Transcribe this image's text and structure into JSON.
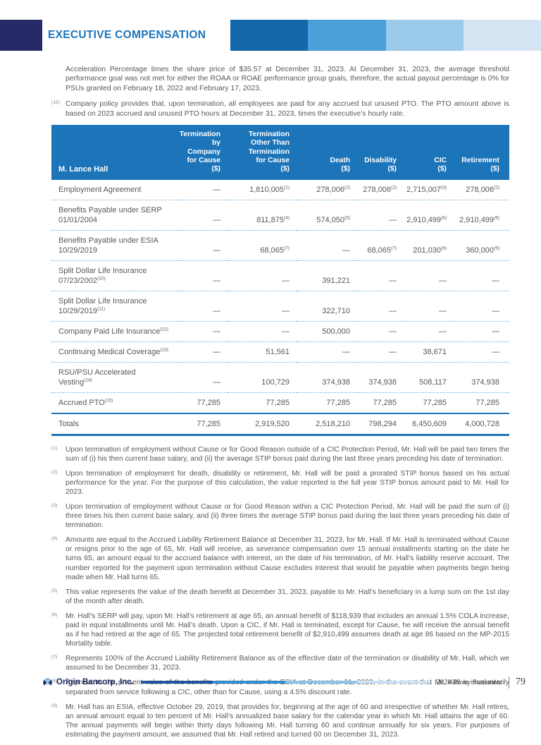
{
  "header": {
    "title": "EXECUTIVE COMPENSATION",
    "navy_block_color": "#262A66",
    "title_color": "#1B75BC",
    "band_colors": [
      "#1368AC",
      "#4A9FD8",
      "#9CCAEB",
      "#D5E5F4"
    ]
  },
  "top_notes": [
    {
      "marker": "",
      "text": "Acceleration Percentage times the share price of $35.57 at December 31, 2023. At December 31, 2023, the average threshold performance goal was not met for either the ROAA or ROAE performance group goals, therefore, the actual payout percentage is 0% for PSUs granted on February 18, 2022 and February 17, 2023."
    },
    {
      "marker": "(15)",
      "text": "Company policy provides that, upon termination, all employees are paid for any accrued but unused PTO. The PTO amount above is based on 2023 accrued and unused PTO hours at December 31, 2023, times the executive’s hourly rate."
    }
  ],
  "table": {
    "header_bg": "#1C74B9",
    "name_header": "M. Lance Hall",
    "columns": [
      "Termination\nby Company\nfor Cause\n($)",
      "Termination\nOther Than\nTermination\nfor Cause\n($)",
      "Death\n($)",
      "Disability\n($)",
      "CIC\n($)",
      "Retirement\n($)"
    ],
    "rows": [
      {
        "label": {
          "l1": "Employment Agreement"
        },
        "cells": [
          {
            "v": "—"
          },
          {
            "v": "1,810,005",
            "s": "(1)"
          },
          {
            "v": "278,006",
            "s": "(2)"
          },
          {
            "v": "278,006",
            "s": "(2)"
          },
          {
            "v": "2,715,007",
            "s": "(3)"
          },
          {
            "v": "278,006",
            "s": "(2)"
          }
        ]
      },
      {
        "label": {
          "l1": "Benefits Payable under SERP",
          "l2": "01/01/2004"
        },
        "cells": [
          {
            "v": "—"
          },
          {
            "v": "811,875",
            "s": "(4)"
          },
          {
            "v": "574,050",
            "s": "(5)"
          },
          {
            "v": "—"
          },
          {
            "v": "2,910,499",
            "s": "(6)"
          },
          {
            "v": "2,910,499",
            "s": "(6)"
          }
        ]
      },
      {
        "label": {
          "l1": "Benefits Payable under ESIA",
          "l2": "10/29/2019"
        },
        "cells": [
          {
            "v": "—"
          },
          {
            "v": "68,065",
            "s": "(7)"
          },
          {
            "v": "—"
          },
          {
            "v": "68,065",
            "s": "(7)"
          },
          {
            "v": "201,030",
            "s": "(8)"
          },
          {
            "v": "360,000",
            "s": "(9)"
          }
        ]
      },
      {
        "label": {
          "l1": "Split Dollar Life Insurance",
          "l2": "07/23/2002",
          "sup": "(10)"
        },
        "cells": [
          {
            "v": "—"
          },
          {
            "v": "—"
          },
          {
            "v": "391,221"
          },
          {
            "v": "—"
          },
          {
            "v": "—"
          },
          {
            "v": "—"
          }
        ]
      },
      {
        "label": {
          "l1": "Split Dollar Life Insurance",
          "l2": "10/29/2019",
          "sup": "(11)"
        },
        "cells": [
          {
            "v": "—"
          },
          {
            "v": "—"
          },
          {
            "v": "322,710"
          },
          {
            "v": "—"
          },
          {
            "v": "—"
          },
          {
            "v": "—"
          }
        ]
      },
      {
        "label": {
          "l1": "Company Paid Life Insurance",
          "sup": "(12)"
        },
        "cells": [
          {
            "v": "—"
          },
          {
            "v": "—"
          },
          {
            "v": "500,000"
          },
          {
            "v": "—"
          },
          {
            "v": "—"
          },
          {
            "v": "—"
          }
        ]
      },
      {
        "label": {
          "l1": "Continuing Medical Coverage",
          "sup": "(13)"
        },
        "cells": [
          {
            "v": "—"
          },
          {
            "v": "51,561"
          },
          {
            "v": "—"
          },
          {
            "v": "—"
          },
          {
            "v": "38,671"
          },
          {
            "v": "—"
          }
        ]
      },
      {
        "label": {
          "l1": "RSU/PSU Accelerated Vesting",
          "sup": "(14)"
        },
        "cells": [
          {
            "v": "—"
          },
          {
            "v": "100,729"
          },
          {
            "v": "374,938"
          },
          {
            "v": "374,938"
          },
          {
            "v": "508,117"
          },
          {
            "v": "374,938"
          }
        ]
      },
      {
        "label": {
          "l1": "Accrued PTO",
          "sup": "(15)"
        },
        "cells": [
          {
            "v": "77,285"
          },
          {
            "v": "77,285"
          },
          {
            "v": "77,285"
          },
          {
            "v": "77,285"
          },
          {
            "v": "77,285"
          },
          {
            "v": "77,285"
          }
        ]
      },
      {
        "total": true,
        "label": {
          "l1": "Totals"
        },
        "cells": [
          {
            "v": "77,285"
          },
          {
            "v": "2,919,520"
          },
          {
            "v": "2,518,210"
          },
          {
            "v": "798,294"
          },
          {
            "v": "6,450,609"
          },
          {
            "v": "4,000,728"
          }
        ]
      }
    ]
  },
  "footnotes": [
    {
      "marker": "(1)",
      "text": "Upon termination of employment without Cause or for Good Reason outside of a CIC Protection Period, Mr. Hall will be paid two times the sum of (i) his then current base salary, and (ii) the average STIP bonus paid during the last three years preceding his date of termination."
    },
    {
      "marker": "(2)",
      "text": "Upon termination of employment for death, disability or retirement, Mr. Hall will be paid a prorated STIP bonus based on his actual performance for the year. For the purpose of this calculation, the value reported is the full year STIP bonus amount paid to Mr. Hall for 2023."
    },
    {
      "marker": "(3)",
      "text": "Upon termination of employment without Cause or for Good Reason within a CIC Protection Period, Mr. Hall will be paid the sum of (i) three times his then current base salary, and (ii) three times the average STIP bonus paid during the last three years preceding his date of termination."
    },
    {
      "marker": "(4)",
      "text": "Amounts are equal to the Accrued Liability Retirement Balance at December 31, 2023, for Mr. Hall. If Mr. Hall is terminated without Cause or resigns prior to the age of 65, Mr. Hall will receive, as severance compensation over 15 annual installments starting on the date he turns 65, an amount equal to the accrued balance with interest, on the date of his termination, of Mr. Hall’s liability reserve account. The number reported for the payment upon termination without Cause excludes interest that would be payable when payments begin being made when Mr. Hall turns 65."
    },
    {
      "marker": "(5)",
      "text": "This value represents the value of the death benefit at December 31, 2023, payable to Mr. Hall’s beneficiary in a lump sum on the 1st day of the month after death."
    },
    {
      "marker": "(6)",
      "text": "Mr. Hall’s SERP will pay, upon Mr. Hall’s retirement at age 65, an annual benefit of $118,939 that includes an annual 1.5% COLA increase, paid in equal installments until Mr. Hall’s death. Upon a CIC, if Mr. Hall is terminated, except for Cause, he will receive the annual benefit as if he had retired at the age of 65. The projected total retirement benefit of $2,910,499 assumes death at age 86 based on the MP-2015 Mortality table."
    },
    {
      "marker": "(7)",
      "text": "Represents 100% of the Accrued Liability Retirement Balance as of the effective date of the termination or disability of Mr. Hall, which we assumed to be December 31, 2023."
    },
    {
      "marker": "(8)",
      "text": "Represents the present value of the benefits provided under the ESIA at December 31, 2023, in the event that Mr. Hall is involuntarily separated from service following a CIC, other than for Cause, using a 4.5% discount rate."
    },
    {
      "marker": "(9)",
      "text": "Mr. Hall has an ESIA, effective October 29, 2019, that provides for, beginning at the age of 60 and irrespective of whether Mr. Hall retires, an annual amount equal to ten percent of Mr. Hall’s annualized base salary for the calendar year in which Mr. Hall attains the age of 60. The annual payments will begin within thirty days following Mr. Hall turning 60 and continue annually for six years. For purposes of estimating the payment amount, we assumed that Mr. Hall retired and turned 60 on December 31, 2023."
    }
  ],
  "footer": {
    "company": "Origin Bancorp, Inc.",
    "bar_colors": [
      "#1E55A0",
      "#2F8FD0",
      "#8FC3EA",
      "#CBE2F5"
    ],
    "right_text": "2024 Proxy Statement",
    "page": "79"
  }
}
